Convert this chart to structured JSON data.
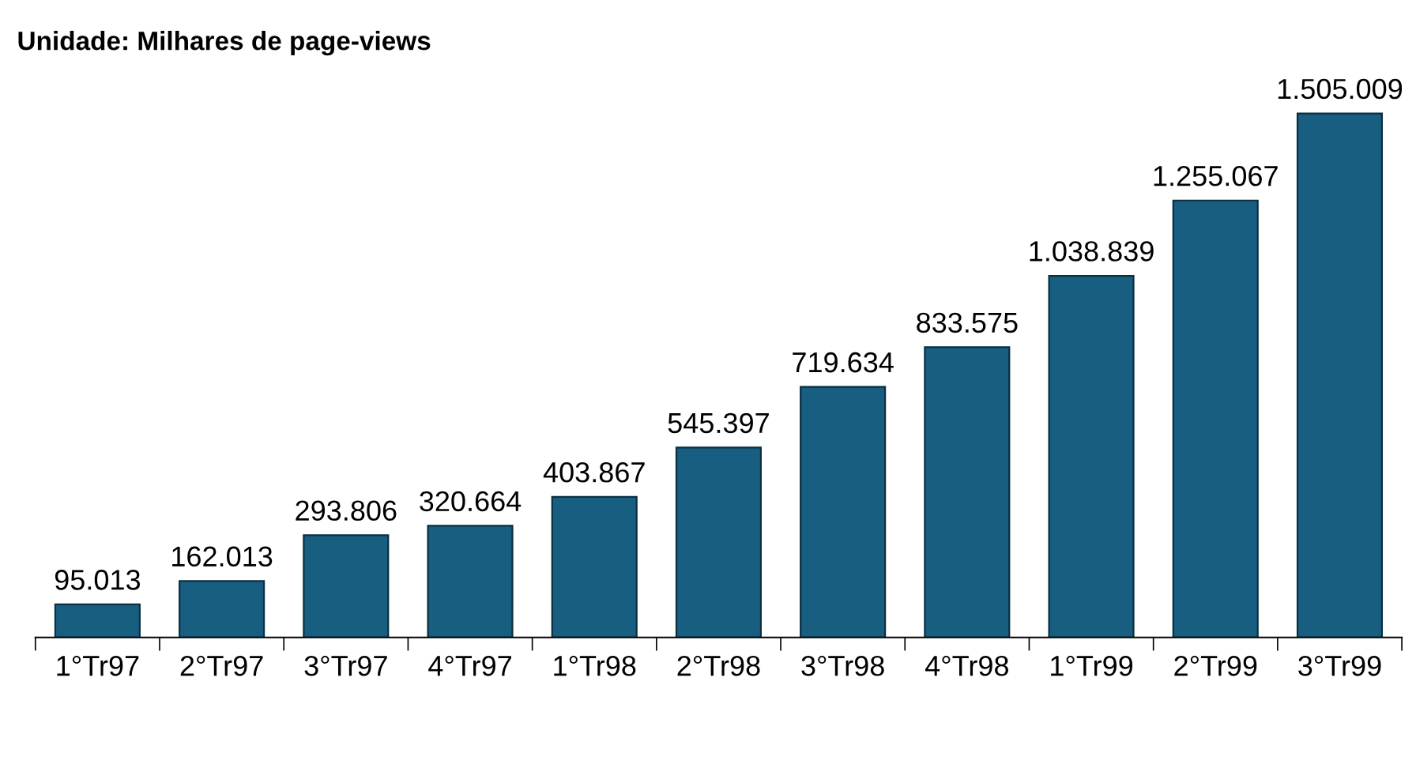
{
  "chart_data": {
    "type": "bar",
    "title": "Unidade: Milhares de page-views",
    "categories": [
      "1°Tr97",
      "2°Tr97",
      "3°Tr97",
      "4°Tr97",
      "1°Tr98",
      "2°Tr98",
      "3°Tr98",
      "4°Tr98",
      "1°Tr99",
      "2°Tr99",
      "3°Tr99"
    ],
    "values": [
      95013,
      162013,
      293806,
      320664,
      403867,
      545397,
      719634,
      833575,
      1038839,
      1255067,
      1505009
    ],
    "value_labels": [
      "95.013",
      "162.013",
      "293.806",
      "320.664",
      "403.867",
      "545.397",
      "719.634",
      "833.575",
      "1.038.839",
      "1.255.067",
      "1.505.009"
    ],
    "color": "#175e80",
    "grid": false,
    "legend": false
  }
}
